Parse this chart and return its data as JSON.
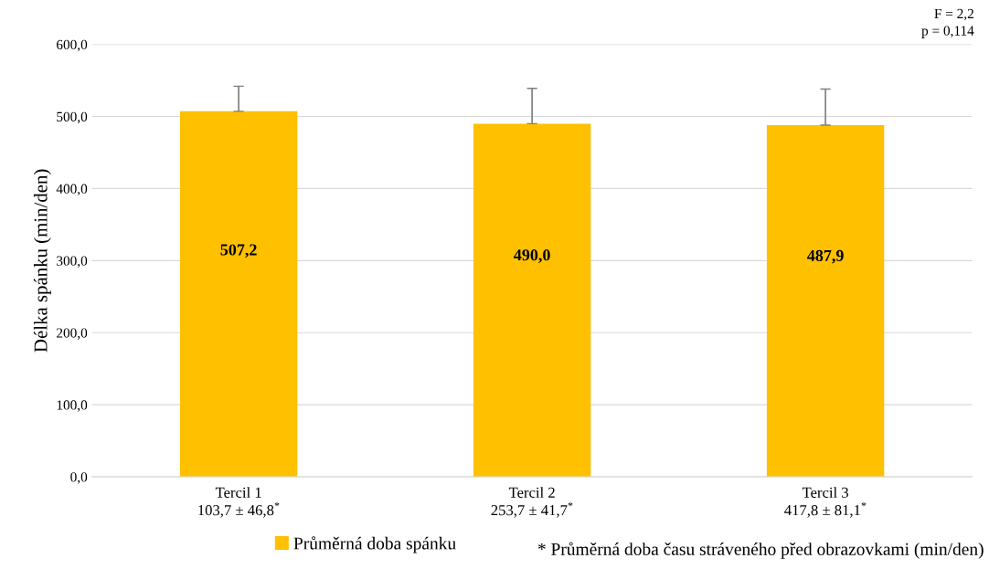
{
  "chart_data": {
    "type": "bar",
    "ylabel": "Délka spánku (min/den)",
    "categories": [
      "Tercil 1\n103,7 ± 46,8$^{*}$",
      "Tercil 2\n253,7 ± 41,7$^{*}$",
      "Tercil 3\n417,8 ± 81,1$^{*}$"
    ],
    "series": [
      {
        "name": "Průměrná doba spánku",
        "color": "#ffc000",
        "values": [
          507.2,
          490.0,
          487.9
        ],
        "value_labels": [
          "507,2",
          "490,0",
          "487,9"
        ],
        "errors": [
          [
            507.2,
            542
          ],
          [
            490.0,
            539
          ],
          [
            487.9,
            538
          ]
        ]
      }
    ],
    "ylim": [
      0,
      600
    ],
    "yticks": [
      {
        "value": 0,
        "label": "0,0"
      },
      {
        "value": 100,
        "label": "100,0"
      },
      {
        "value": 200,
        "label": "200,0"
      },
      {
        "value": 300,
        "label": "300,0"
      },
      {
        "value": 400,
        "label": "400,0"
      },
      {
        "value": 500,
        "label": "500,0"
      },
      {
        "value": 600,
        "label": "600,0"
      }
    ],
    "grid": "y",
    "legend": "bottom",
    "annotations": [
      "F = 2,2",
      "p = 0,114",
      "* Průměrná doba času stráveného před obrazovkami (min/den)"
    ]
  }
}
